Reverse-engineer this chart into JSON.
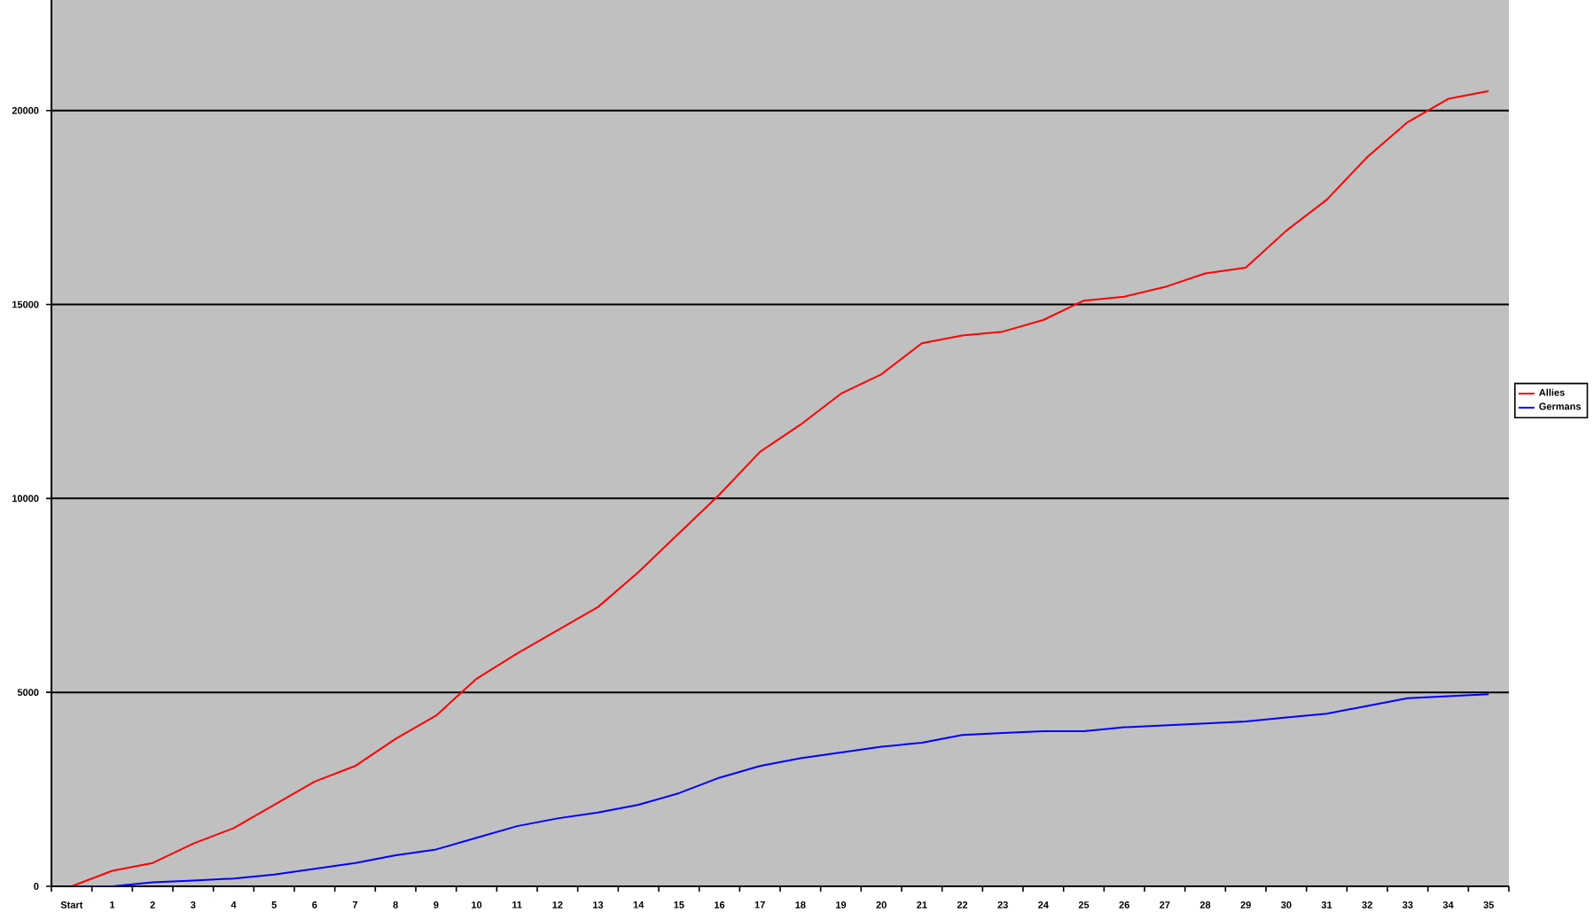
{
  "chart_data": {
    "type": "line",
    "categories": [
      "Start",
      "1",
      "2",
      "3",
      "4",
      "5",
      "6",
      "7",
      "8",
      "9",
      "10",
      "11",
      "12",
      "13",
      "14",
      "15",
      "16",
      "17",
      "18",
      "19",
      "20",
      "21",
      "22",
      "23",
      "24",
      "25",
      "26",
      "27",
      "28",
      "29",
      "30",
      "31",
      "32",
      "33",
      "34",
      "35"
    ],
    "series": [
      {
        "name": "Allies",
        "color": "#ff0000",
        "values": [
          0,
          400,
          600,
          1100,
          1500,
          2100,
          2700,
          3100,
          3800,
          4400,
          5350,
          6000,
          6600,
          7200,
          8100,
          9100,
          10100,
          11200,
          11900,
          12700,
          13200,
          14000,
          14200,
          14300,
          14600,
          15100,
          15200,
          15450,
          15800,
          15950,
          16900,
          17700,
          18800,
          19700,
          20300,
          20500
        ]
      },
      {
        "name": "Germans",
        "color": "#0000ff",
        "values": [
          0,
          0,
          100,
          150,
          200,
          300,
          450,
          600,
          800,
          950,
          1250,
          1550,
          1750,
          1900,
          2100,
          2400,
          2800,
          3100,
          3300,
          3450,
          3600,
          3700,
          3900,
          3950,
          4000,
          4000,
          4100,
          4150,
          4200,
          4250,
          4350,
          4450,
          4650,
          4850,
          4900,
          4950
        ]
      }
    ],
    "ylim": [
      0,
      22850
    ],
    "yticks": [
      0,
      5000,
      10000,
      15000,
      20000
    ],
    "grid": "y",
    "legend": "right",
    "marker": "none",
    "line_style": "solid"
  }
}
